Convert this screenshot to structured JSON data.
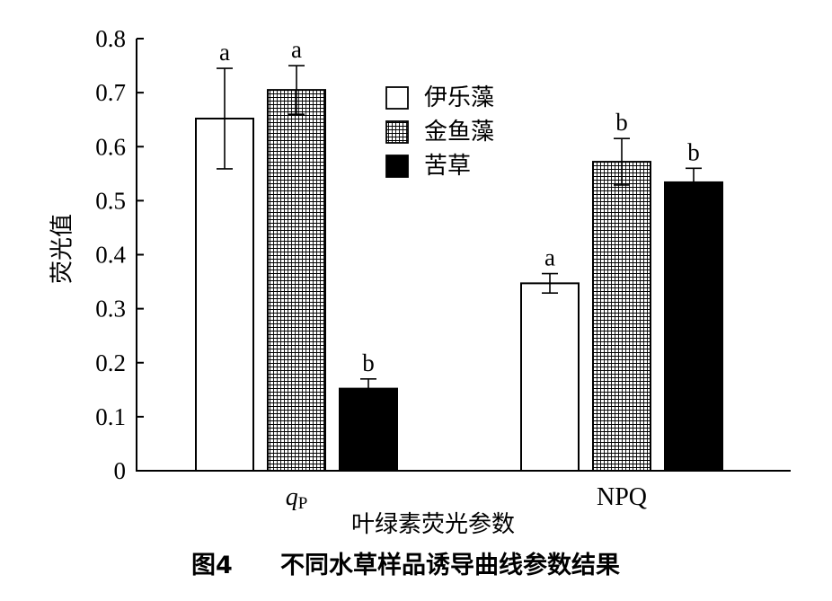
{
  "caption": {
    "figure_label": "图4",
    "title": "不同水草样品诱导曲线参数结果"
  },
  "chart_data": {
    "type": "bar",
    "ylabel": "荧光值",
    "xlabel": "叶绿素荧光参数",
    "ylim": [
      0,
      0.8
    ],
    "yticks": [
      "0",
      "0.1",
      "0.2",
      "0.3",
      "0.4",
      "0.5",
      "0.6",
      "0.7",
      "0.8"
    ],
    "categories": [
      {
        "main": "q",
        "sub": "P"
      },
      {
        "main": "NPQ",
        "sub": ""
      }
    ],
    "legend_position": "top-center",
    "grid": false,
    "series": [
      {
        "name": "伊乐藻",
        "fill": "white",
        "values": [
          0.652,
          0.347
        ],
        "errors": [
          0.093,
          0.018
        ],
        "letters": [
          "a",
          "a"
        ]
      },
      {
        "name": "金鱼藻",
        "fill": "grid-hatch",
        "values": [
          0.705,
          0.572
        ],
        "errors": [
          0.045,
          0.043
        ],
        "letters": [
          "a",
          "b"
        ]
      },
      {
        "name": "苦草",
        "fill": "black",
        "values": [
          0.152,
          0.534
        ],
        "errors": [
          0.018,
          0.026
        ],
        "letters": [
          "b",
          "b"
        ]
      }
    ]
  }
}
